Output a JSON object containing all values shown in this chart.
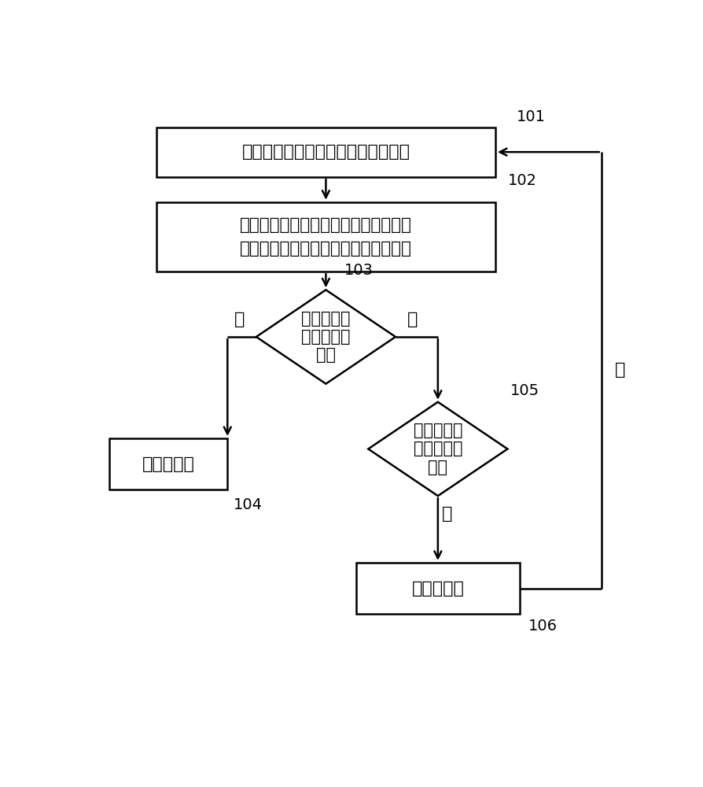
{
  "bg_color": "#ffffff",
  "line_color": "#000000",
  "text_color": "#000000",
  "box_fill": "#ffffff",
  "box_edge": "#000000",
  "step101_text": "获取位于喂料槽处进食的禽畜的标识",
  "step102_line1": "确定所述标识对应的禽畜信息，所述禽",
  "step102_line2": "畜信息包括禽畜当日已进行的采食时长",
  "step103_text": "采食时长超\n过第一设定\n时长",
  "step104_text": "限制投料量",
  "step105_text": "采食时长小\n于第二设定\n时长",
  "step106_text": "加大投料量",
  "label_101": "101",
  "label_102": "102",
  "label_103": "103",
  "label_104": "104",
  "label_105": "105",
  "label_106": "106",
  "yes_text": "是",
  "no_text": "否"
}
